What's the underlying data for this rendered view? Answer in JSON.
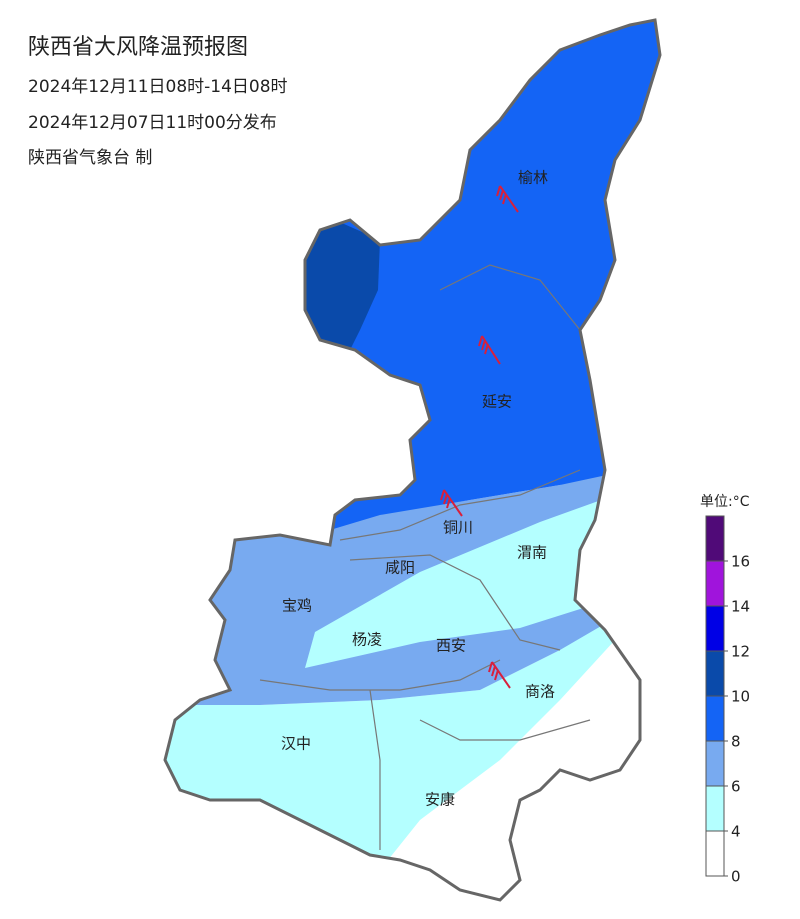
{
  "header": {
    "title": "陕西省大风降温预报图",
    "period": "2024年12月11日08时-14日08时",
    "issued": "2024年12月07日11时00分发布",
    "agency": "陕西省气象台 制"
  },
  "cities": [
    "榆林",
    "延安",
    "铜川",
    "咸阳",
    "渭南",
    "宝鸡",
    "杨凌",
    "西安",
    "商洛",
    "汉中",
    "安康"
  ],
  "legend": {
    "title": "单位:°C",
    "ticks": [
      0,
      4,
      6,
      8,
      10,
      12,
      14,
      16
    ],
    "colors": [
      "#ffffff",
      "#b4ffff",
      "#78aaf0",
      "#1464f5",
      "#0a4aaa",
      "#0000e6",
      "#a014dc",
      "#500a78"
    ]
  }
}
